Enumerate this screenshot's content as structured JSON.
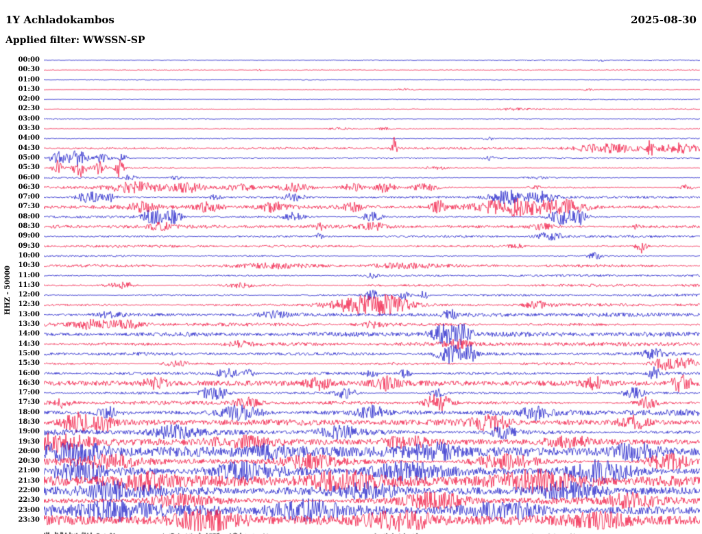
{
  "header": {
    "station": "1Y Achladokambos",
    "date": "2025-08-30",
    "filter": "Applied filter: WWSSN-SP"
  },
  "axis": {
    "y_label": "HHZ - 50000"
  },
  "colors": {
    "red": "#f0103c",
    "blue": "#1b1bc8",
    "black": "#000000"
  },
  "chart_data": {
    "type": "line",
    "title": "Helicorder day plot, station 1Y Achladokambos, channel HHZ, 2025-08-30, filter WWSSN-SP",
    "xlabel": "",
    "ylabel": "HHZ - 50000",
    "layout": {
      "rows": 48,
      "row_interval_minutes": 30,
      "colors_alternate": [
        "blue",
        "red"
      ],
      "grid": false,
      "legend": "none"
    },
    "rows": [
      {
        "t": "00:00",
        "c": "blue",
        "n": 0.7,
        "ev": [
          [
            0.85,
            0.005,
            2
          ]
        ]
      },
      {
        "t": "00:30",
        "c": "red",
        "n": 0.7,
        "ev": [
          [
            0.33,
            0.005,
            2
          ]
        ]
      },
      {
        "t": "01:00",
        "c": "blue",
        "n": 0.7,
        "ev": []
      },
      {
        "t": "01:30",
        "c": "red",
        "n": 0.8,
        "ev": [
          [
            0.55,
            0.02,
            1.5
          ],
          [
            0.83,
            0.01,
            1.5
          ]
        ]
      },
      {
        "t": "02:00",
        "c": "blue",
        "n": 0.7,
        "ev": []
      },
      {
        "t": "02:30",
        "c": "red",
        "n": 0.9,
        "ev": [
          [
            0.72,
            0.03,
            1.5
          ]
        ]
      },
      {
        "t": "03:00",
        "c": "blue",
        "n": 0.7,
        "ev": []
      },
      {
        "t": "03:30",
        "c": "red",
        "n": 1.0,
        "ev": [
          [
            0.45,
            0.02,
            2
          ],
          [
            0.52,
            0.01,
            2
          ]
        ]
      },
      {
        "t": "04:00",
        "c": "blue",
        "n": 1.0,
        "ev": [
          [
            0.68,
            0.01,
            2
          ]
        ]
      },
      {
        "t": "04:30",
        "c": "red",
        "n": 1.2,
        "ev": [
          [
            0.534,
            0.004,
            16
          ],
          [
            0.86,
            0.05,
            6
          ],
          [
            0.925,
            0.004,
            12
          ],
          [
            0.97,
            0.03,
            7
          ]
        ]
      },
      {
        "t": "05:00",
        "c": "blue",
        "n": 1.2,
        "ev": [
          [
            0.02,
            0.01,
            10
          ],
          [
            0.05,
            0.015,
            12
          ],
          [
            0.09,
            0.01,
            8
          ],
          [
            0.12,
            0.008,
            6
          ],
          [
            0.68,
            0.01,
            3
          ]
        ]
      },
      {
        "t": "05:30",
        "c": "red",
        "n": 1.2,
        "ev": [
          [
            0.02,
            0.008,
            12
          ],
          [
            0.055,
            0.01,
            14
          ],
          [
            0.085,
            0.008,
            10
          ],
          [
            0.115,
            0.006,
            14
          ],
          [
            0.6,
            0.02,
            2
          ]
        ]
      },
      {
        "t": "06:00",
        "c": "blue",
        "n": 1.5,
        "ev": [
          [
            0.13,
            0.01,
            4
          ],
          [
            0.2,
            0.01,
            3
          ],
          [
            0.75,
            0.02,
            2
          ]
        ]
      },
      {
        "t": "06:30",
        "c": "red",
        "n": 1.8,
        "ev": [
          [
            0.14,
            0.04,
            8
          ],
          [
            0.22,
            0.03,
            7
          ],
          [
            0.3,
            0.02,
            5
          ],
          [
            0.38,
            0.03,
            6
          ],
          [
            0.47,
            0.02,
            6
          ],
          [
            0.52,
            0.015,
            7
          ],
          [
            0.58,
            0.02,
            5
          ],
          [
            0.75,
            0.01,
            3
          ],
          [
            0.98,
            0.01,
            4
          ]
        ]
      },
      {
        "t": "07:00",
        "c": "blue",
        "n": 1.8,
        "ev": [
          [
            0.07,
            0.02,
            8
          ],
          [
            0.1,
            0.01,
            6
          ],
          [
            0.26,
            0.01,
            4
          ],
          [
            0.38,
            0.02,
            5
          ],
          [
            0.71,
            0.03,
            10
          ],
          [
            0.76,
            0.02,
            8
          ]
        ]
      },
      {
        "t": "07:30",
        "c": "red",
        "n": 2.0,
        "ev": [
          [
            0.15,
            0.02,
            6
          ],
          [
            0.25,
            0.02,
            6
          ],
          [
            0.35,
            0.02,
            7
          ],
          [
            0.47,
            0.015,
            6
          ],
          [
            0.6,
            0.01,
            10
          ],
          [
            0.72,
            0.06,
            12
          ],
          [
            0.8,
            0.03,
            8
          ]
        ]
      },
      {
        "t": "08:00",
        "c": "blue",
        "n": 2.0,
        "ev": [
          [
            0.17,
            0.02,
            12
          ],
          [
            0.2,
            0.01,
            10
          ],
          [
            0.38,
            0.015,
            6
          ],
          [
            0.5,
            0.015,
            7
          ],
          [
            0.79,
            0.02,
            12
          ],
          [
            0.82,
            0.01,
            10
          ]
        ]
      },
      {
        "t": "08:30",
        "c": "red",
        "n": 1.8,
        "ev": [
          [
            0.18,
            0.02,
            5
          ],
          [
            0.42,
            0.01,
            4
          ],
          [
            0.5,
            0.02,
            5
          ],
          [
            0.76,
            0.015,
            4
          ],
          [
            0.905,
            0.005,
            6
          ]
        ]
      },
      {
        "t": "09:00",
        "c": "blue",
        "n": 1.8,
        "ev": [
          [
            0.42,
            0.005,
            5
          ],
          [
            0.77,
            0.02,
            6
          ]
        ]
      },
      {
        "t": "09:30",
        "c": "red",
        "n": 1.8,
        "ev": [
          [
            0.72,
            0.01,
            4
          ],
          [
            0.91,
            0.008,
            10
          ]
        ]
      },
      {
        "t": "10:00",
        "c": "blue",
        "n": 1.8,
        "ev": [
          [
            0.84,
            0.01,
            5
          ]
        ]
      },
      {
        "t": "10:30",
        "c": "red",
        "n": 2.0,
        "ev": [
          [
            0.35,
            0.05,
            3
          ],
          [
            0.55,
            0.05,
            3
          ]
        ]
      },
      {
        "t": "11:00",
        "c": "blue",
        "n": 1.8,
        "ev": [
          [
            0.5,
            0.01,
            3
          ]
        ]
      },
      {
        "t": "11:30",
        "c": "red",
        "n": 2.0,
        "ev": [
          [
            0.12,
            0.02,
            5
          ],
          [
            0.3,
            0.02,
            3
          ]
        ]
      },
      {
        "t": "12:00",
        "c": "blue",
        "n": 2.0,
        "ev": [
          [
            0.5,
            0.01,
            8
          ],
          [
            0.55,
            0.008,
            10
          ],
          [
            0.58,
            0.006,
            8
          ]
        ]
      },
      {
        "t": "12:30",
        "c": "red",
        "n": 2.2,
        "ev": [
          [
            0.48,
            0.05,
            12
          ],
          [
            0.53,
            0.03,
            10
          ],
          [
            0.75,
            0.02,
            5
          ]
        ]
      },
      {
        "t": "13:00",
        "c": "blue",
        "n": 2.2,
        "ev": [
          [
            0.1,
            0.02,
            4
          ],
          [
            0.35,
            0.02,
            4
          ],
          [
            0.62,
            0.01,
            6
          ]
        ]
      },
      {
        "t": "13:30",
        "c": "red",
        "n": 2.4,
        "ev": [
          [
            0.08,
            0.03,
            6
          ],
          [
            0.13,
            0.02,
            5
          ],
          [
            0.5,
            0.02,
            4
          ]
        ]
      },
      {
        "t": "14:00",
        "c": "blue",
        "n": 2.4,
        "ev": [
          [
            0.61,
            0.02,
            14
          ],
          [
            0.64,
            0.015,
            12
          ]
        ]
      },
      {
        "t": "14:30",
        "c": "red",
        "n": 2.4,
        "ev": [
          [
            0.3,
            0.02,
            4
          ],
          [
            0.63,
            0.02,
            5
          ]
        ]
      },
      {
        "t": "15:00",
        "c": "blue",
        "n": 2.6,
        "ev": [
          [
            0.62,
            0.02,
            14
          ],
          [
            0.65,
            0.01,
            10
          ],
          [
            0.93,
            0.02,
            6
          ]
        ]
      },
      {
        "t": "15:30",
        "c": "red",
        "n": 2.6,
        "ev": [
          [
            0.2,
            0.02,
            5
          ],
          [
            0.95,
            0.02,
            10
          ],
          [
            0.98,
            0.01,
            8
          ]
        ]
      },
      {
        "t": "16:00",
        "c": "blue",
        "n": 2.6,
        "ev": [
          [
            0.28,
            0.015,
            8
          ],
          [
            0.31,
            0.01,
            6
          ],
          [
            0.5,
            0.01,
            6
          ],
          [
            0.55,
            0.01,
            6
          ],
          [
            0.93,
            0.01,
            8
          ]
        ]
      },
      {
        "t": "16:30",
        "c": "red",
        "n": 2.8,
        "ev": [
          [
            0.17,
            0.02,
            7
          ],
          [
            0.42,
            0.02,
            8
          ],
          [
            0.52,
            0.02,
            8
          ],
          [
            0.84,
            0.015,
            7
          ],
          [
            0.97,
            0.015,
            12
          ]
        ]
      },
      {
        "t": "17:00",
        "c": "blue",
        "n": 2.8,
        "ev": [
          [
            0.26,
            0.02,
            12
          ],
          [
            0.46,
            0.015,
            8
          ],
          [
            0.6,
            0.01,
            7
          ],
          [
            0.9,
            0.015,
            8
          ]
        ]
      },
      {
        "t": "17:30",
        "c": "red",
        "n": 3.0,
        "ev": [
          [
            0.03,
            0.01,
            8
          ],
          [
            0.31,
            0.02,
            8
          ],
          [
            0.6,
            0.02,
            14
          ],
          [
            0.92,
            0.015,
            8
          ]
        ]
      },
      {
        "t": "18:00",
        "c": "blue",
        "n": 3.5,
        "ev": [
          [
            0.1,
            0.02,
            8
          ],
          [
            0.3,
            0.03,
            10
          ],
          [
            0.5,
            0.02,
            8
          ],
          [
            0.75,
            0.02,
            8
          ]
        ]
      },
      {
        "t": "18:30",
        "c": "red",
        "n": 3.5,
        "ev": [
          [
            0.05,
            0.02,
            14
          ],
          [
            0.09,
            0.015,
            12
          ],
          [
            0.68,
            0.03,
            10
          ],
          [
            0.9,
            0.02,
            8
          ]
        ]
      },
      {
        "t": "19:00",
        "c": "blue",
        "n": 4.0,
        "ev": [
          [
            0.2,
            0.03,
            8
          ],
          [
            0.45,
            0.03,
            8
          ],
          [
            0.7,
            0.02,
            8
          ]
        ]
      },
      {
        "t": "19:30",
        "c": "red",
        "n": 4.5,
        "ev": [
          [
            0.02,
            0.05,
            12
          ],
          [
            0.3,
            0.05,
            8
          ],
          [
            0.55,
            0.04,
            8
          ],
          [
            0.8,
            0.04,
            8
          ]
        ]
      },
      {
        "t": "20:00",
        "c": "blue",
        "n": 5.0,
        "ev": [
          [
            0.05,
            0.05,
            10
          ],
          [
            0.35,
            0.04,
            8
          ],
          [
            0.6,
            0.05,
            10
          ],
          [
            0.9,
            0.04,
            10
          ]
        ]
      },
      {
        "t": "20:30",
        "c": "red",
        "n": 5.5,
        "ev": [
          [
            0.1,
            0.05,
            10
          ],
          [
            0.4,
            0.05,
            10
          ],
          [
            0.7,
            0.05,
            10
          ],
          [
            0.95,
            0.03,
            12
          ]
        ]
      },
      {
        "t": "21:00",
        "c": "blue",
        "n": 6.0,
        "ev": [
          [
            0.05,
            0.04,
            12
          ],
          [
            0.3,
            0.05,
            10
          ],
          [
            0.55,
            0.05,
            10
          ],
          [
            0.85,
            0.04,
            12
          ]
        ]
      },
      {
        "t": "21:30",
        "c": "red",
        "n": 6.0,
        "ev": [
          [
            0.15,
            0.05,
            10
          ],
          [
            0.45,
            0.05,
            10
          ],
          [
            0.75,
            0.05,
            10
          ]
        ]
      },
      {
        "t": "22:00",
        "c": "blue",
        "n": 6.0,
        "ev": [
          [
            0.1,
            0.05,
            10
          ],
          [
            0.5,
            0.05,
            10
          ],
          [
            0.8,
            0.05,
            12
          ]
        ]
      },
      {
        "t": "22:30",
        "c": "red",
        "n": 6.0,
        "ev": [
          [
            0.2,
            0.05,
            10
          ],
          [
            0.6,
            0.05,
            10
          ],
          [
            0.9,
            0.04,
            10
          ]
        ]
      },
      {
        "t": "23:00",
        "c": "blue",
        "n": 6.0,
        "ev": [
          [
            0.1,
            0.05,
            10
          ],
          [
            0.4,
            0.05,
            10
          ],
          [
            0.7,
            0.05,
            10
          ]
        ]
      },
      {
        "t": "23:30",
        "c": "red",
        "n": 6.0,
        "ev": [
          [
            0.25,
            0.05,
            10
          ],
          [
            0.55,
            0.05,
            10
          ],
          [
            0.85,
            0.05,
            10
          ]
        ]
      }
    ],
    "footer_trace": {
      "color": "black",
      "n": 7
    }
  }
}
